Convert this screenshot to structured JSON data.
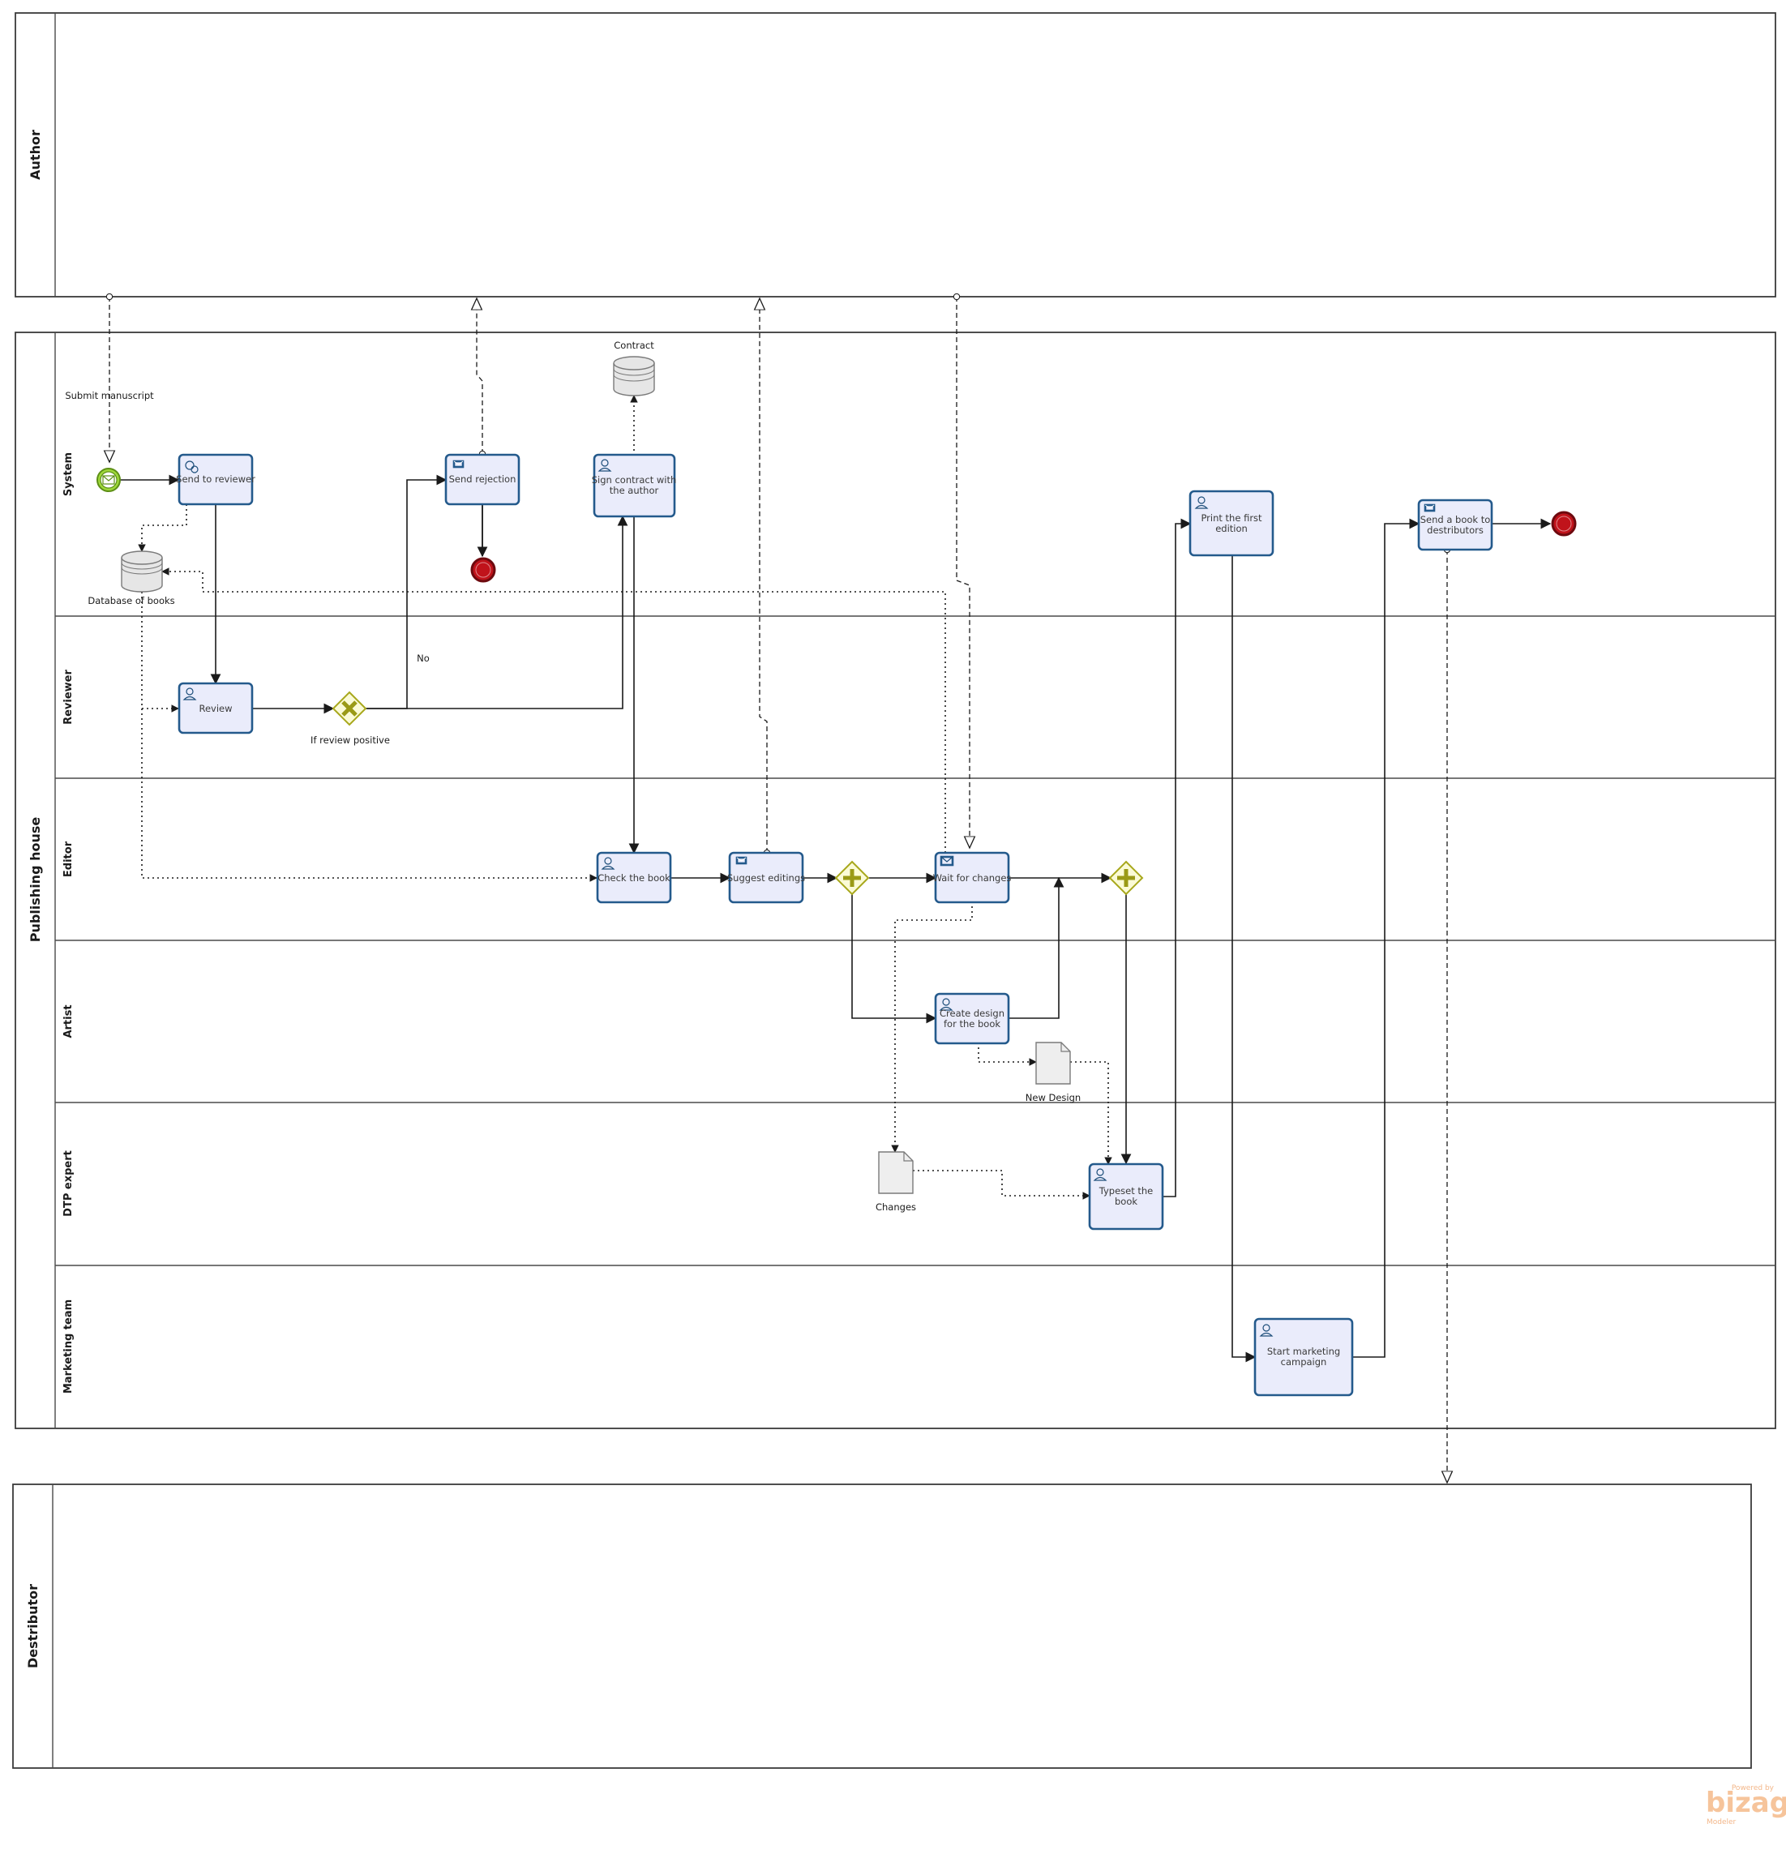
{
  "diagram": {
    "pools": {
      "author": "Author",
      "publishing": "Publishing house",
      "distributor": "Destributor"
    },
    "lanes": {
      "system": "System",
      "reviewer": "Reviewer",
      "editor": "Editor",
      "artist": "Artist",
      "dtp": "DTP expert",
      "marketing": "Marketing team"
    },
    "tasks": {
      "send_to_reviewer": [
        "Send to reviewer"
      ],
      "send_rejection": [
        "Send rejection"
      ],
      "sign_contract": [
        "Sign contract with",
        "the author"
      ],
      "print_first_edition": [
        "Print the first",
        "edition"
      ],
      "send_to_distributors": [
        "Send a book to",
        "destributors"
      ],
      "review": [
        "Review"
      ],
      "check_book": [
        "Check the book"
      ],
      "suggest_editings": [
        "Suggest editings"
      ],
      "wait_for_changes": [
        "Wait for changes"
      ],
      "create_design": [
        "Create design",
        "for the book"
      ],
      "typeset_book": [
        "Typeset the",
        "book"
      ],
      "start_marketing": [
        "Start marketing",
        "campaign"
      ]
    },
    "labels": {
      "submit_manuscript": "Submit manuscript",
      "database_of_books": "Database of books",
      "contract": "Contract",
      "no": "No",
      "if_review_positive": "If review positive",
      "new_design": "New Design",
      "changes": "Changes"
    },
    "watermark": {
      "powered_by": "Powered by",
      "brand": "bizagi",
      "product": "Modeler"
    },
    "colors": {
      "task_fill": "#eaecfb",
      "task_border": "#245a8c",
      "start_event": "#9fd93a",
      "end_event": "#c0131b",
      "gateway_fill": "#fbfbd6",
      "gateway_mark": "#9a9a16"
    }
  }
}
